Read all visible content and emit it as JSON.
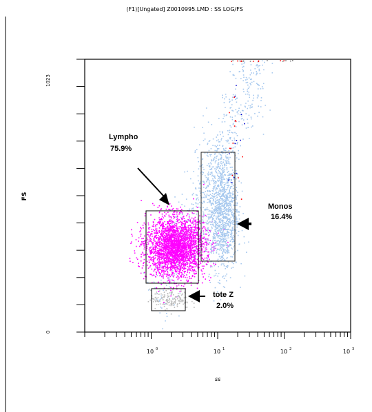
{
  "chart_data": {
    "type": "scatter",
    "title": "(F1)[Ungated] Z0010995.LMD : SS LOG/FS",
    "xlabel": "ss",
    "ylabel": "FS",
    "x_scale": "log",
    "xlim": [
      0.1,
      1000
    ],
    "ylim": [
      0,
      1023
    ],
    "y_ticks": [
      "0",
      "1023"
    ],
    "x_ticks": [
      {
        "base": "10",
        "exp": "0"
      },
      {
        "base": "10",
        "exp": "1"
      },
      {
        "base": "10",
        "exp": "2"
      },
      {
        "base": "10",
        "exp": "3"
      }
    ],
    "grid": false,
    "colors": {
      "lympho": "#ff00ff",
      "monos": "#a6c8ee",
      "tote": "#bbbbbb",
      "scatter": "#a6c8ee",
      "high_red": "#ff0000",
      "high_blue": "#0000cc"
    },
    "gates": [
      {
        "name": "Lympho",
        "percent": "75.9%",
        "x": [
          1,
          7.9
        ],
        "y": [
          183,
          456
        ]
      },
      {
        "name": "Monos",
        "percent": "16.4%",
        "x": [
          7.9,
          24
        ],
        "y": [
          270,
          686
        ]
      },
      {
        "name": "tote Z",
        "percent": "2.0%",
        "x": [
          1.03,
          3.3
        ],
        "y": [
          83,
          166
        ]
      }
    ],
    "populations": [
      {
        "name": "Lympho",
        "color": "#ff00ff",
        "count": 2800,
        "x_center": 2.3,
        "x_spread_decades": 0.22,
        "y_center": 320,
        "y_spread": 55
      },
      {
        "name": "Monos",
        "color": "#a6c8ee",
        "count": 1300,
        "x_center": 11.5,
        "x_spread_decades": 0.12,
        "y_center": 450,
        "y_spread": 110
      },
      {
        "name": "tote Z",
        "color": "#bbbbbb",
        "count": 160,
        "x_center": 1.9,
        "x_spread_decades": 0.15,
        "y_center": 125,
        "y_spread": 18
      }
    ]
  }
}
